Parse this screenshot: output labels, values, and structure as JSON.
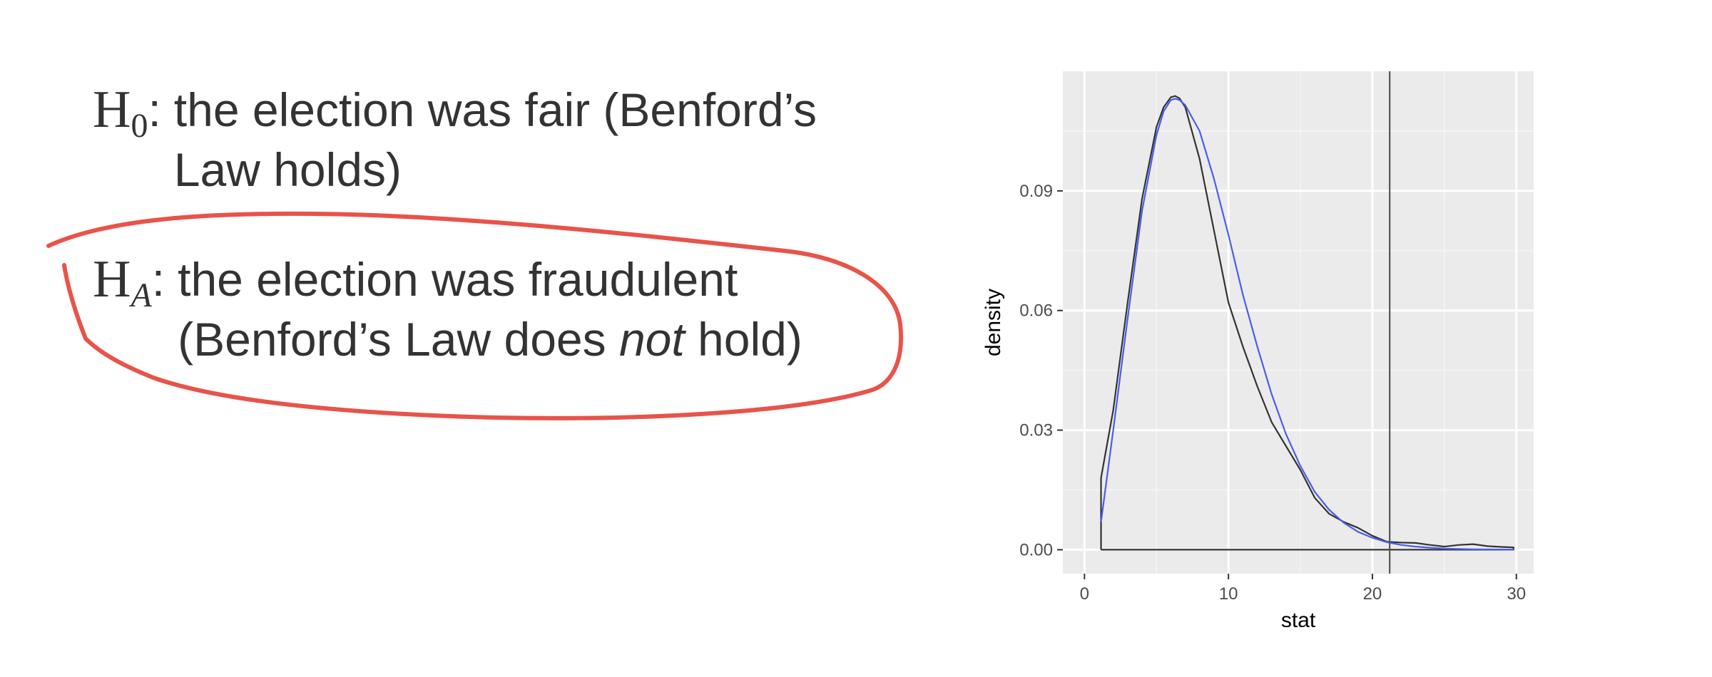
{
  "hypotheses": {
    "null": {
      "symbol": "H",
      "subscript": "0",
      "colon": ":",
      "line1": "the election was fair (Benford’s",
      "line2": "Law holds)"
    },
    "alternative": {
      "symbol": "H",
      "subscript": "A",
      "colon": ":",
      "line1": "the election was fraudulent",
      "line2_pre": "(Benford’s Law does ",
      "line2_emph": "not",
      "line2_post": " hold)"
    }
  },
  "annotation_color": "#e8534a",
  "chart_data": {
    "type": "line",
    "title": "",
    "xlabel": "stat",
    "ylabel": "density",
    "xlim": [
      0,
      30
    ],
    "ylim": [
      0,
      0.114
    ],
    "x_ticks": [
      0,
      10,
      20,
      30
    ],
    "x_tick_labels": [
      "0",
      "10",
      "20",
      "30"
    ],
    "y_ticks": [
      0,
      0.03,
      0.06,
      0.09
    ],
    "y_tick_labels": [
      "0.00",
      "0.03",
      "0.06",
      "0.09"
    ],
    "grid": true,
    "legend": "none",
    "reference_line": {
      "orientation": "vertical",
      "x": 21.2,
      "color": "#555555"
    },
    "series": [
      {
        "color": "#333333",
        "fill_baseline": true,
        "x": [
          1.15,
          1.15,
          2,
          3,
          4,
          5,
          5.5,
          6,
          6.3,
          6.6,
          7,
          8,
          9,
          10,
          11,
          12,
          13,
          14,
          15,
          16,
          17,
          18,
          19,
          20,
          21,
          22,
          23,
          24,
          25,
          26,
          27,
          28,
          29,
          29.8
        ],
        "y": [
          0.0,
          0.018,
          0.035,
          0.062,
          0.088,
          0.106,
          0.111,
          0.1135,
          0.1138,
          0.1132,
          0.111,
          0.098,
          0.08,
          0.062,
          0.051,
          0.041,
          0.032,
          0.026,
          0.02,
          0.013,
          0.009,
          0.007,
          0.0055,
          0.0035,
          0.002,
          0.0018,
          0.0017,
          0.0012,
          0.0008,
          0.0012,
          0.0014,
          0.0009,
          0.0007,
          0.0006
        ]
      },
      {
        "color": "#4a5de8",
        "fill_baseline": false,
        "x": [
          1.15,
          2,
          3,
          4,
          5,
          5.5,
          6,
          6.3,
          6.6,
          7,
          8,
          9,
          10,
          11,
          12,
          13,
          14,
          15,
          16,
          17,
          18,
          19,
          20,
          21,
          22,
          23,
          24,
          25,
          26,
          27,
          28,
          29,
          29.8
        ],
        "y": [
          0.007,
          0.03,
          0.058,
          0.085,
          0.104,
          0.11,
          0.1128,
          0.1131,
          0.1128,
          0.1115,
          0.105,
          0.093,
          0.079,
          0.064,
          0.051,
          0.039,
          0.029,
          0.021,
          0.0145,
          0.01,
          0.0068,
          0.0045,
          0.003,
          0.0019,
          0.0012,
          0.0008,
          0.0005,
          0.0003,
          0.0002,
          0.00012,
          8e-05,
          5e-05,
          3e-05
        ]
      }
    ]
  }
}
